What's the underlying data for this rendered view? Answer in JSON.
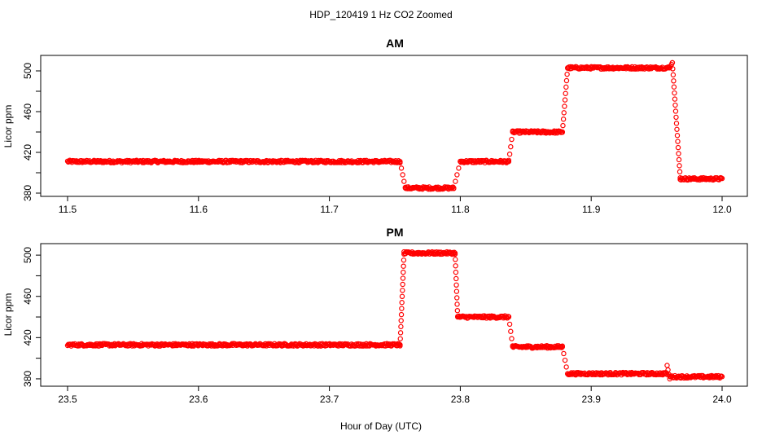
{
  "figure": {
    "title": "HDP_120419  1 Hz CO2 Zoomed",
    "xlabel": "Hour of Day (UTC)"
  },
  "chart_data": [
    {
      "type": "scatter",
      "title": "AM",
      "xlabel": "",
      "ylabel": "Licor ppm",
      "xlim": [
        11.5,
        12.0
      ],
      "ylim": [
        380,
        512
      ],
      "xticks": [
        "11.5",
        "11.6",
        "11.7",
        "11.8",
        "11.9",
        "12.0"
      ],
      "xtick_values": [
        11.5,
        11.6,
        11.7,
        11.8,
        11.9,
        12.0
      ],
      "yticks": [
        "380",
        "420",
        "460",
        "500"
      ],
      "ytick_values": [
        380,
        420,
        460,
        500
      ],
      "marker": "open-circle",
      "color": "#ff0000",
      "segments": [
        {
          "x": [
            11.5,
            11.754
          ],
          "y": [
            411,
            411
          ]
        },
        {
          "x": [
            11.754,
            11.758
          ],
          "y": [
            411,
            385
          ]
        },
        {
          "x": [
            11.758,
            11.795
          ],
          "y": [
            385,
            385
          ]
        },
        {
          "x": [
            11.795,
            11.8
          ],
          "y": [
            385,
            411
          ]
        },
        {
          "x": [
            11.8,
            11.837
          ],
          "y": [
            411,
            411
          ]
        },
        {
          "x": [
            11.837,
            11.84
          ],
          "y": [
            411,
            440
          ]
        },
        {
          "x": [
            11.84,
            11.878
          ],
          "y": [
            440,
            440
          ]
        },
        {
          "x": [
            11.878,
            11.882
          ],
          "y": [
            440,
            503
          ]
        },
        {
          "x": [
            11.882,
            11.96
          ],
          "y": [
            503,
            503
          ]
        },
        {
          "x": [
            11.96,
            11.962
          ],
          "y": [
            503,
            508
          ]
        },
        {
          "x": [
            11.962,
            11.968
          ],
          "y": [
            508,
            395
          ]
        },
        {
          "x": [
            11.968,
            12.0
          ],
          "y": [
            394,
            394
          ]
        }
      ]
    },
    {
      "type": "scatter",
      "title": "PM",
      "xlabel": "",
      "ylabel": "Licor ppm",
      "xlim": [
        23.5,
        24.0
      ],
      "ylim": [
        376,
        508
      ],
      "xticks": [
        "23.5",
        "23.6",
        "23.7",
        "23.8",
        "23.9",
        "24.0"
      ],
      "xtick_values": [
        23.5,
        23.6,
        23.7,
        23.8,
        23.9,
        24.0
      ],
      "yticks": [
        "380",
        "420",
        "460",
        "500"
      ],
      "ytick_values": [
        380,
        420,
        460,
        500
      ],
      "marker": "open-circle",
      "color": "#ff0000",
      "segments": [
        {
          "x": [
            23.5,
            23.754
          ],
          "y": [
            413,
            413
          ]
        },
        {
          "x": [
            23.754,
            23.757
          ],
          "y": [
            413,
            501
          ]
        },
        {
          "x": [
            23.757,
            23.796
          ],
          "y": [
            502,
            502
          ]
        },
        {
          "x": [
            23.796,
            23.798
          ],
          "y": [
            502,
            440
          ]
        },
        {
          "x": [
            23.798,
            23.837
          ],
          "y": [
            440,
            440
          ]
        },
        {
          "x": [
            23.837,
            23.84
          ],
          "y": [
            440,
            412
          ]
        },
        {
          "x": [
            23.84,
            23.878
          ],
          "y": [
            411,
            411
          ]
        },
        {
          "x": [
            23.878,
            23.882
          ],
          "y": [
            411,
            385
          ]
        },
        {
          "x": [
            23.882,
            23.958
          ],
          "y": [
            385,
            385
          ]
        },
        {
          "x": [
            23.958,
            23.96
          ],
          "y": [
            393,
            380
          ]
        },
        {
          "x": [
            23.96,
            24.0
          ],
          "y": [
            382,
            382
          ]
        }
      ]
    }
  ]
}
